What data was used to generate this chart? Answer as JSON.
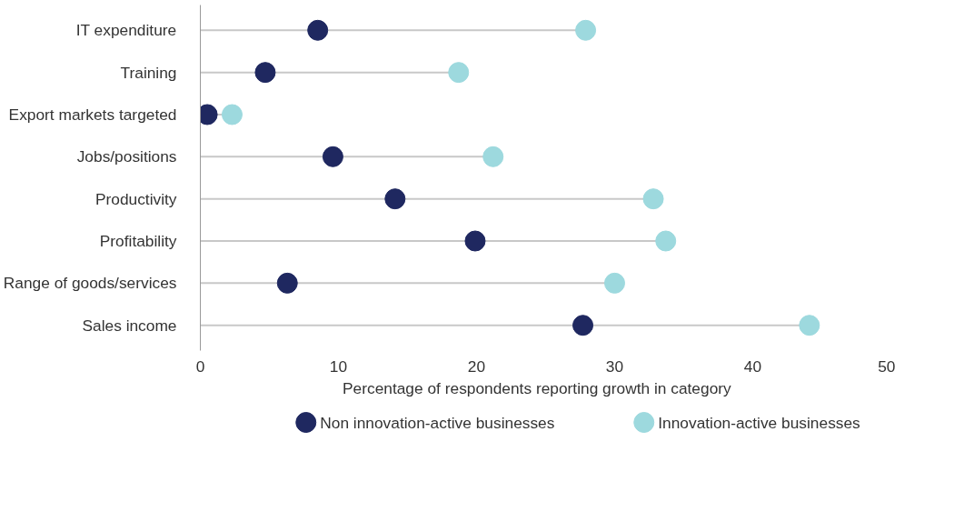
{
  "chart_data": {
    "type": "scatter",
    "orientation": "horizontal",
    "xlabel": "Percentage  of respondents  reporting  growth  in category",
    "categories": [
      "IT expenditure",
      "Training",
      "Export markets targeted",
      "Jobs/positions",
      "Productivity",
      "Profitability",
      "Range of goods/services",
      "Sales income"
    ],
    "series": [
      {
        "name": "Non innovation-active businesses",
        "color": "#1f2860",
        "values": [
          8.5,
          4.7,
          0.5,
          9.6,
          14.1,
          19.9,
          6.3,
          27.7
        ]
      },
      {
        "name": "Innovation-active businesses",
        "color": "#9dd9de",
        "type": "lollipop",
        "values": [
          27.9,
          18.7,
          2.3,
          21.2,
          32.8,
          33.7,
          30.0,
          44.1
        ]
      }
    ],
    "xlim": [
      0,
      50
    ],
    "xticks": [
      0,
      10,
      20,
      30,
      40,
      50
    ],
    "grid": false,
    "legend": "bottom",
    "marker": "circle"
  }
}
